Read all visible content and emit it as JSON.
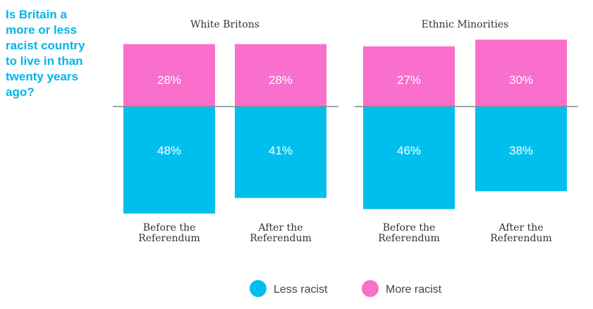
{
  "chart_data": {
    "type": "diverging-bar",
    "title": "Is Britain a more or less racist country to live in than twenty years ago?",
    "groups": [
      "White Britons",
      "Ethnic Minorities"
    ],
    "categories": [
      "Before the Referendum",
      "After the Referendum",
      "Before the Referendum",
      "After the Referendum"
    ],
    "series": [
      {
        "name": "Less racist",
        "color": "#00bfef",
        "values": [
          48,
          41,
          46,
          38
        ],
        "value_labels": [
          "48%",
          "41%",
          "46%",
          "38%"
        ]
      },
      {
        "name": "More racist",
        "color": "#f96fcb",
        "values": [
          28,
          28,
          27,
          30
        ],
        "value_labels": [
          "28%",
          "28%",
          "27%",
          "30%"
        ]
      }
    ]
  }
}
